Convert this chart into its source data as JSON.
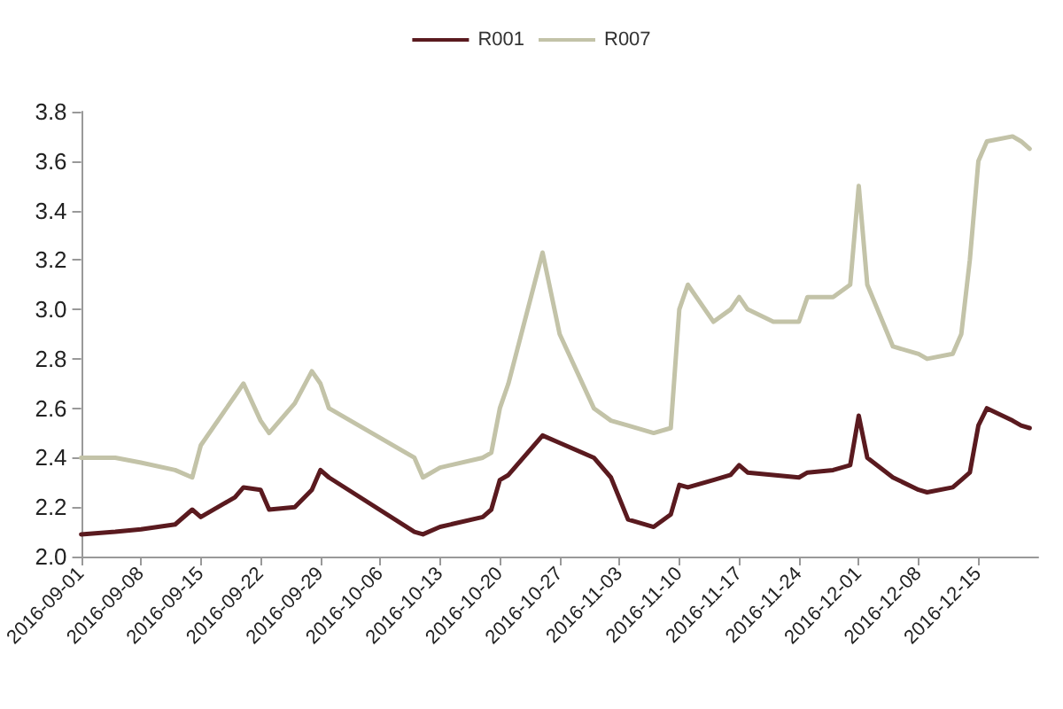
{
  "chart_data": {
    "type": "line",
    "x": [
      "2016-09-01",
      "2016-09-05",
      "2016-09-08",
      "2016-09-12",
      "2016-09-14",
      "2016-09-15",
      "2016-09-19",
      "2016-09-20",
      "2016-09-22",
      "2016-09-23",
      "2016-09-26",
      "2016-09-28",
      "2016-09-29",
      "2016-09-30",
      "2016-10-10",
      "2016-10-11",
      "2016-10-13",
      "2016-10-18",
      "2016-10-19",
      "2016-10-20",
      "2016-10-21",
      "2016-10-25",
      "2016-10-27",
      "2016-10-31",
      "2016-11-02",
      "2016-11-04",
      "2016-11-07",
      "2016-11-09",
      "2016-11-10",
      "2016-11-11",
      "2016-11-14",
      "2016-11-16",
      "2016-11-17",
      "2016-11-18",
      "2016-11-21",
      "2016-11-24",
      "2016-11-25",
      "2016-11-28",
      "2016-11-30",
      "2016-12-01",
      "2016-12-02",
      "2016-12-05",
      "2016-12-08",
      "2016-12-09",
      "2016-12-12",
      "2016-12-13",
      "2016-12-14",
      "2016-12-15",
      "2016-12-16",
      "2016-12-19",
      "2016-12-20",
      "2016-12-21"
    ],
    "series": [
      {
        "name": "R001",
        "color": "#5a1a1f",
        "values": [
          2.09,
          2.1,
          2.11,
          2.13,
          2.19,
          2.16,
          2.24,
          2.28,
          2.27,
          2.19,
          2.2,
          2.27,
          2.35,
          2.32,
          2.1,
          2.09,
          2.12,
          2.16,
          2.19,
          2.31,
          2.33,
          2.49,
          2.46,
          2.4,
          2.32,
          2.15,
          2.12,
          2.17,
          2.29,
          2.28,
          2.31,
          2.33,
          2.37,
          2.34,
          2.33,
          2.32,
          2.34,
          2.35,
          2.37,
          2.57,
          2.4,
          2.32,
          2.27,
          2.26,
          2.28,
          2.31,
          2.34,
          2.53,
          2.6,
          2.55,
          2.53,
          2.52
        ]
      },
      {
        "name": "R007",
        "color": "#c3c3a8",
        "values": [
          2.4,
          2.4,
          2.38,
          2.35,
          2.32,
          2.45,
          2.65,
          2.7,
          2.55,
          2.5,
          2.62,
          2.75,
          2.7,
          2.6,
          2.4,
          2.32,
          2.36,
          2.4,
          2.42,
          2.6,
          2.7,
          3.23,
          2.9,
          2.6,
          2.55,
          2.53,
          2.5,
          2.52,
          3.0,
          3.1,
          2.95,
          3.0,
          3.05,
          3.0,
          2.95,
          2.95,
          3.05,
          3.05,
          3.1,
          3.5,
          3.1,
          2.85,
          2.82,
          2.8,
          2.82,
          2.9,
          3.2,
          3.6,
          3.68,
          3.7,
          3.68,
          3.65
        ]
      }
    ],
    "xlim": [
      "2016-09-01",
      "2016-12-22"
    ],
    "xticks": [
      "2016-09-01",
      "2016-09-08",
      "2016-09-15",
      "2016-09-22",
      "2016-09-29",
      "2016-10-06",
      "2016-10-13",
      "2016-10-20",
      "2016-10-27",
      "2016-11-03",
      "2016-11-10",
      "2016-11-17",
      "2016-11-24",
      "2016-12-01",
      "2016-12-08",
      "2016-12-15"
    ],
    "ylim": [
      2.0,
      3.8
    ],
    "yticks": [
      {
        "value": 2.0,
        "label": "2.0"
      },
      {
        "value": 2.2,
        "label": "2.2"
      },
      {
        "value": 2.4,
        "label": "2.4"
      },
      {
        "value": 2.6,
        "label": "2.6"
      },
      {
        "value": 2.8,
        "label": "2.8"
      },
      {
        "value": 3.0,
        "label": "3.0"
      },
      {
        "value": 3.2,
        "label": "3.2"
      },
      {
        "value": 3.4,
        "label": "3.4"
      },
      {
        "value": 3.6,
        "label": "3.6"
      },
      {
        "value": 3.8,
        "label": "3.8"
      }
    ],
    "grid": false,
    "legend": "top",
    "marker": "none",
    "line_style": "solid"
  }
}
